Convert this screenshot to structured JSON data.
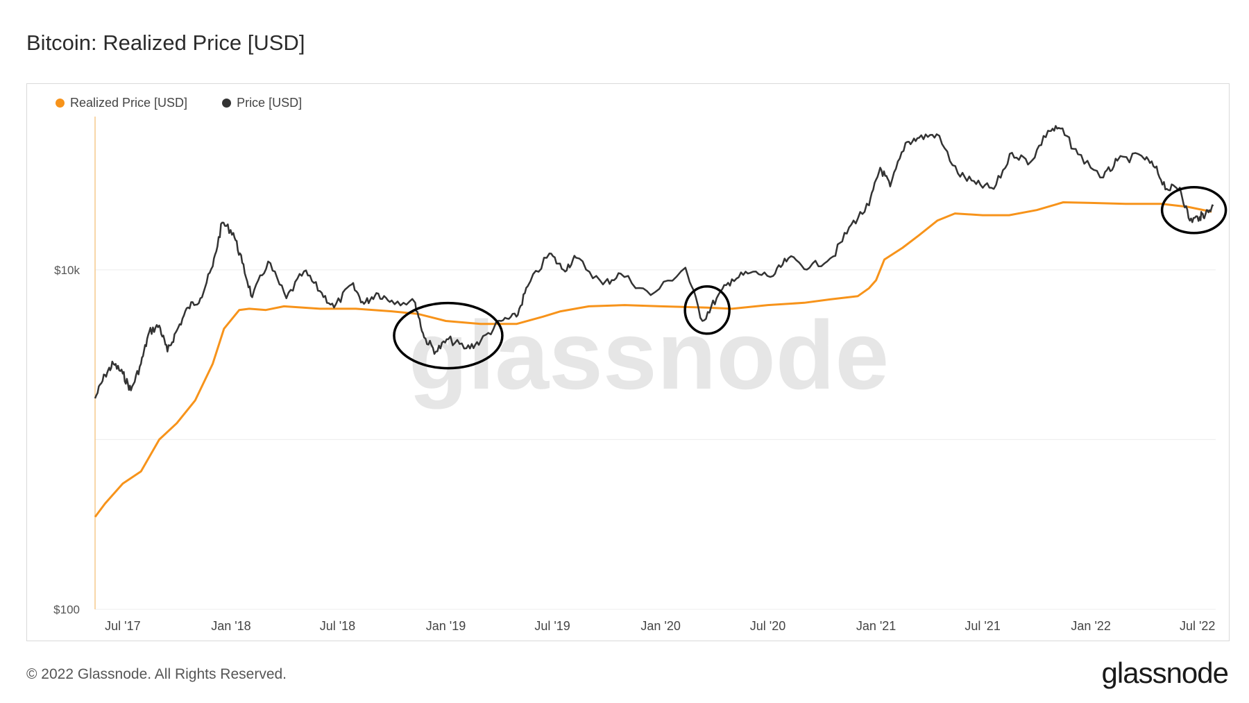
{
  "title": "Bitcoin: Realized Price [USD]",
  "legend": [
    {
      "label": "Realized Price [USD]",
      "color": "#f7931a"
    },
    {
      "label": "Price [USD]",
      "color": "#333333"
    }
  ],
  "watermark": "glassnode",
  "footer": "© 2022 Glassnode. All Rights Reserved.",
  "logo": "glassnode",
  "chart_data": {
    "type": "line",
    "title": "Bitcoin: Realized Price [USD]",
    "y_scale": "log",
    "ylim": [
      100,
      80000
    ],
    "y_ticks": [
      {
        "value": 10000,
        "label": "$10k"
      },
      {
        "value": 100,
        "label": "$100"
      }
    ],
    "y_minor_gridlines": [
      1000
    ],
    "xlim": [
      "2017-05-15",
      "2022-08-01"
    ],
    "x_ticks": [
      {
        "date": "2017-07-01",
        "label": "Jul '17"
      },
      {
        "date": "2018-01-01",
        "label": "Jan '18"
      },
      {
        "date": "2018-07-01",
        "label": "Jul '18"
      },
      {
        "date": "2019-01-01",
        "label": "Jan '19"
      },
      {
        "date": "2019-07-01",
        "label": "Jul '19"
      },
      {
        "date": "2020-01-01",
        "label": "Jan '20"
      },
      {
        "date": "2020-07-01",
        "label": "Jul '20"
      },
      {
        "date": "2021-01-01",
        "label": "Jan '21"
      },
      {
        "date": "2021-07-01",
        "label": "Jul '21"
      },
      {
        "date": "2022-01-01",
        "label": "Jan '22"
      },
      {
        "date": "2022-07-01",
        "label": "Jul '22"
      }
    ],
    "grid": true,
    "legend_position": "top-left",
    "series": [
      {
        "name": "Realized Price [USD]",
        "color": "#f7931a",
        "points": [
          [
            "2017-05-15",
            350
          ],
          [
            "2017-06-01",
            420
          ],
          [
            "2017-07-01",
            550
          ],
          [
            "2017-08-01",
            650
          ],
          [
            "2017-09-01",
            1000
          ],
          [
            "2017-10-01",
            1250
          ],
          [
            "2017-11-01",
            1700
          ],
          [
            "2017-12-01",
            2800
          ],
          [
            "2017-12-20",
            4500
          ],
          [
            "2018-01-15",
            5800
          ],
          [
            "2018-02-01",
            5900
          ],
          [
            "2018-03-01",
            5800
          ],
          [
            "2018-04-01",
            6100
          ],
          [
            "2018-06-01",
            5900
          ],
          [
            "2018-08-01",
            5900
          ],
          [
            "2018-10-01",
            5700
          ],
          [
            "2018-11-15",
            5500
          ],
          [
            "2019-01-01",
            5000
          ],
          [
            "2019-03-01",
            4800
          ],
          [
            "2019-05-01",
            4800
          ],
          [
            "2019-06-15",
            5300
          ],
          [
            "2019-07-15",
            5700
          ],
          [
            "2019-09-01",
            6100
          ],
          [
            "2019-11-01",
            6200
          ],
          [
            "2020-01-01",
            6100
          ],
          [
            "2020-03-15",
            6000
          ],
          [
            "2020-05-01",
            5900
          ],
          [
            "2020-07-01",
            6200
          ],
          [
            "2020-09-01",
            6400
          ],
          [
            "2020-10-15",
            6700
          ],
          [
            "2020-12-01",
            7000
          ],
          [
            "2020-12-20",
            7800
          ],
          [
            "2021-01-01",
            8700
          ],
          [
            "2021-01-15",
            11500
          ],
          [
            "2021-02-15",
            13500
          ],
          [
            "2021-03-15",
            16000
          ],
          [
            "2021-04-15",
            19500
          ],
          [
            "2021-05-15",
            21500
          ],
          [
            "2021-07-01",
            21000
          ],
          [
            "2021-08-15",
            21000
          ],
          [
            "2021-10-01",
            22500
          ],
          [
            "2021-11-15",
            25000
          ],
          [
            "2022-01-01",
            24800
          ],
          [
            "2022-03-01",
            24500
          ],
          [
            "2022-05-01",
            24500
          ],
          [
            "2022-06-15",
            23500
          ],
          [
            "2022-07-25",
            22000
          ]
        ]
      },
      {
        "name": "Price [USD]",
        "color": "#333333",
        "points": [
          [
            "2017-05-15",
            1750
          ],
          [
            "2017-06-01",
            2400
          ],
          [
            "2017-06-15",
            2800
          ],
          [
            "2017-07-01",
            2450
          ],
          [
            "2017-07-15",
            1950
          ],
          [
            "2017-08-01",
            2800
          ],
          [
            "2017-08-15",
            4300
          ],
          [
            "2017-09-01",
            4700
          ],
          [
            "2017-09-15",
            3300
          ],
          [
            "2017-10-01",
            4400
          ],
          [
            "2017-10-20",
            6000
          ],
          [
            "2017-11-10",
            6800
          ],
          [
            "2017-12-01",
            10500
          ],
          [
            "2017-12-17",
            19000
          ],
          [
            "2018-01-05",
            16500
          ],
          [
            "2018-01-20",
            11000
          ],
          [
            "2018-02-06",
            6900
          ],
          [
            "2018-03-05",
            11200
          ],
          [
            "2018-04-05",
            6800
          ],
          [
            "2018-05-05",
            9800
          ],
          [
            "2018-06-01",
            7500
          ],
          [
            "2018-06-25",
            6000
          ],
          [
            "2018-07-25",
            8200
          ],
          [
            "2018-08-15",
            6300
          ],
          [
            "2018-09-05",
            7300
          ],
          [
            "2018-10-01",
            6600
          ],
          [
            "2018-11-10",
            6400
          ],
          [
            "2018-11-25",
            4000
          ],
          [
            "2018-12-15",
            3300
          ],
          [
            "2019-01-05",
            3900
          ],
          [
            "2019-02-05",
            3450
          ],
          [
            "2019-03-01",
            3800
          ],
          [
            "2019-04-05",
            5000
          ],
          [
            "2019-05-01",
            5300
          ],
          [
            "2019-05-20",
            8000
          ],
          [
            "2019-06-26",
            12500
          ],
          [
            "2019-07-20",
            10000
          ],
          [
            "2019-08-10",
            11800
          ],
          [
            "2019-09-25",
            8200
          ],
          [
            "2019-10-25",
            9500
          ],
          [
            "2019-12-15",
            7100
          ],
          [
            "2020-02-12",
            10300
          ],
          [
            "2020-03-12",
            5000
          ],
          [
            "2020-04-05",
            6800
          ],
          [
            "2020-05-01",
            8800
          ],
          [
            "2020-06-01",
            9600
          ],
          [
            "2020-07-10",
            9200
          ],
          [
            "2020-08-05",
            11700
          ],
          [
            "2020-09-10",
            10300
          ],
          [
            "2020-10-20",
            12000
          ],
          [
            "2020-11-20",
            18500
          ],
          [
            "2020-12-20",
            24000
          ],
          [
            "2021-01-08",
            40000
          ],
          [
            "2021-01-25",
            31000
          ],
          [
            "2021-02-20",
            56000
          ],
          [
            "2021-03-15",
            60000
          ],
          [
            "2021-04-14",
            63000
          ],
          [
            "2021-05-20",
            37000
          ],
          [
            "2021-06-20",
            32000
          ],
          [
            "2021-07-20",
            30000
          ],
          [
            "2021-08-20",
            49000
          ],
          [
            "2021-09-20",
            43000
          ],
          [
            "2021-10-20",
            66000
          ],
          [
            "2021-11-10",
            68000
          ],
          [
            "2021-12-10",
            48000
          ],
          [
            "2022-01-22",
            35000
          ],
          [
            "2022-02-15",
            44000
          ],
          [
            "2022-03-28",
            47000
          ],
          [
            "2022-04-20",
            40000
          ],
          [
            "2022-05-10",
            30000
          ],
          [
            "2022-06-01",
            30500
          ],
          [
            "2022-06-18",
            19500
          ],
          [
            "2022-07-05",
            20500
          ],
          [
            "2022-07-15",
            21500
          ],
          [
            "2022-07-28",
            23800
          ]
        ]
      }
    ],
    "annotations": [
      {
        "type": "circle",
        "date": "2019-01-05",
        "value": 4100
      },
      {
        "type": "circle",
        "date": "2020-03-20",
        "value": 5800
      },
      {
        "type": "circle",
        "date": "2022-06-25",
        "value": 22500
      }
    ]
  }
}
